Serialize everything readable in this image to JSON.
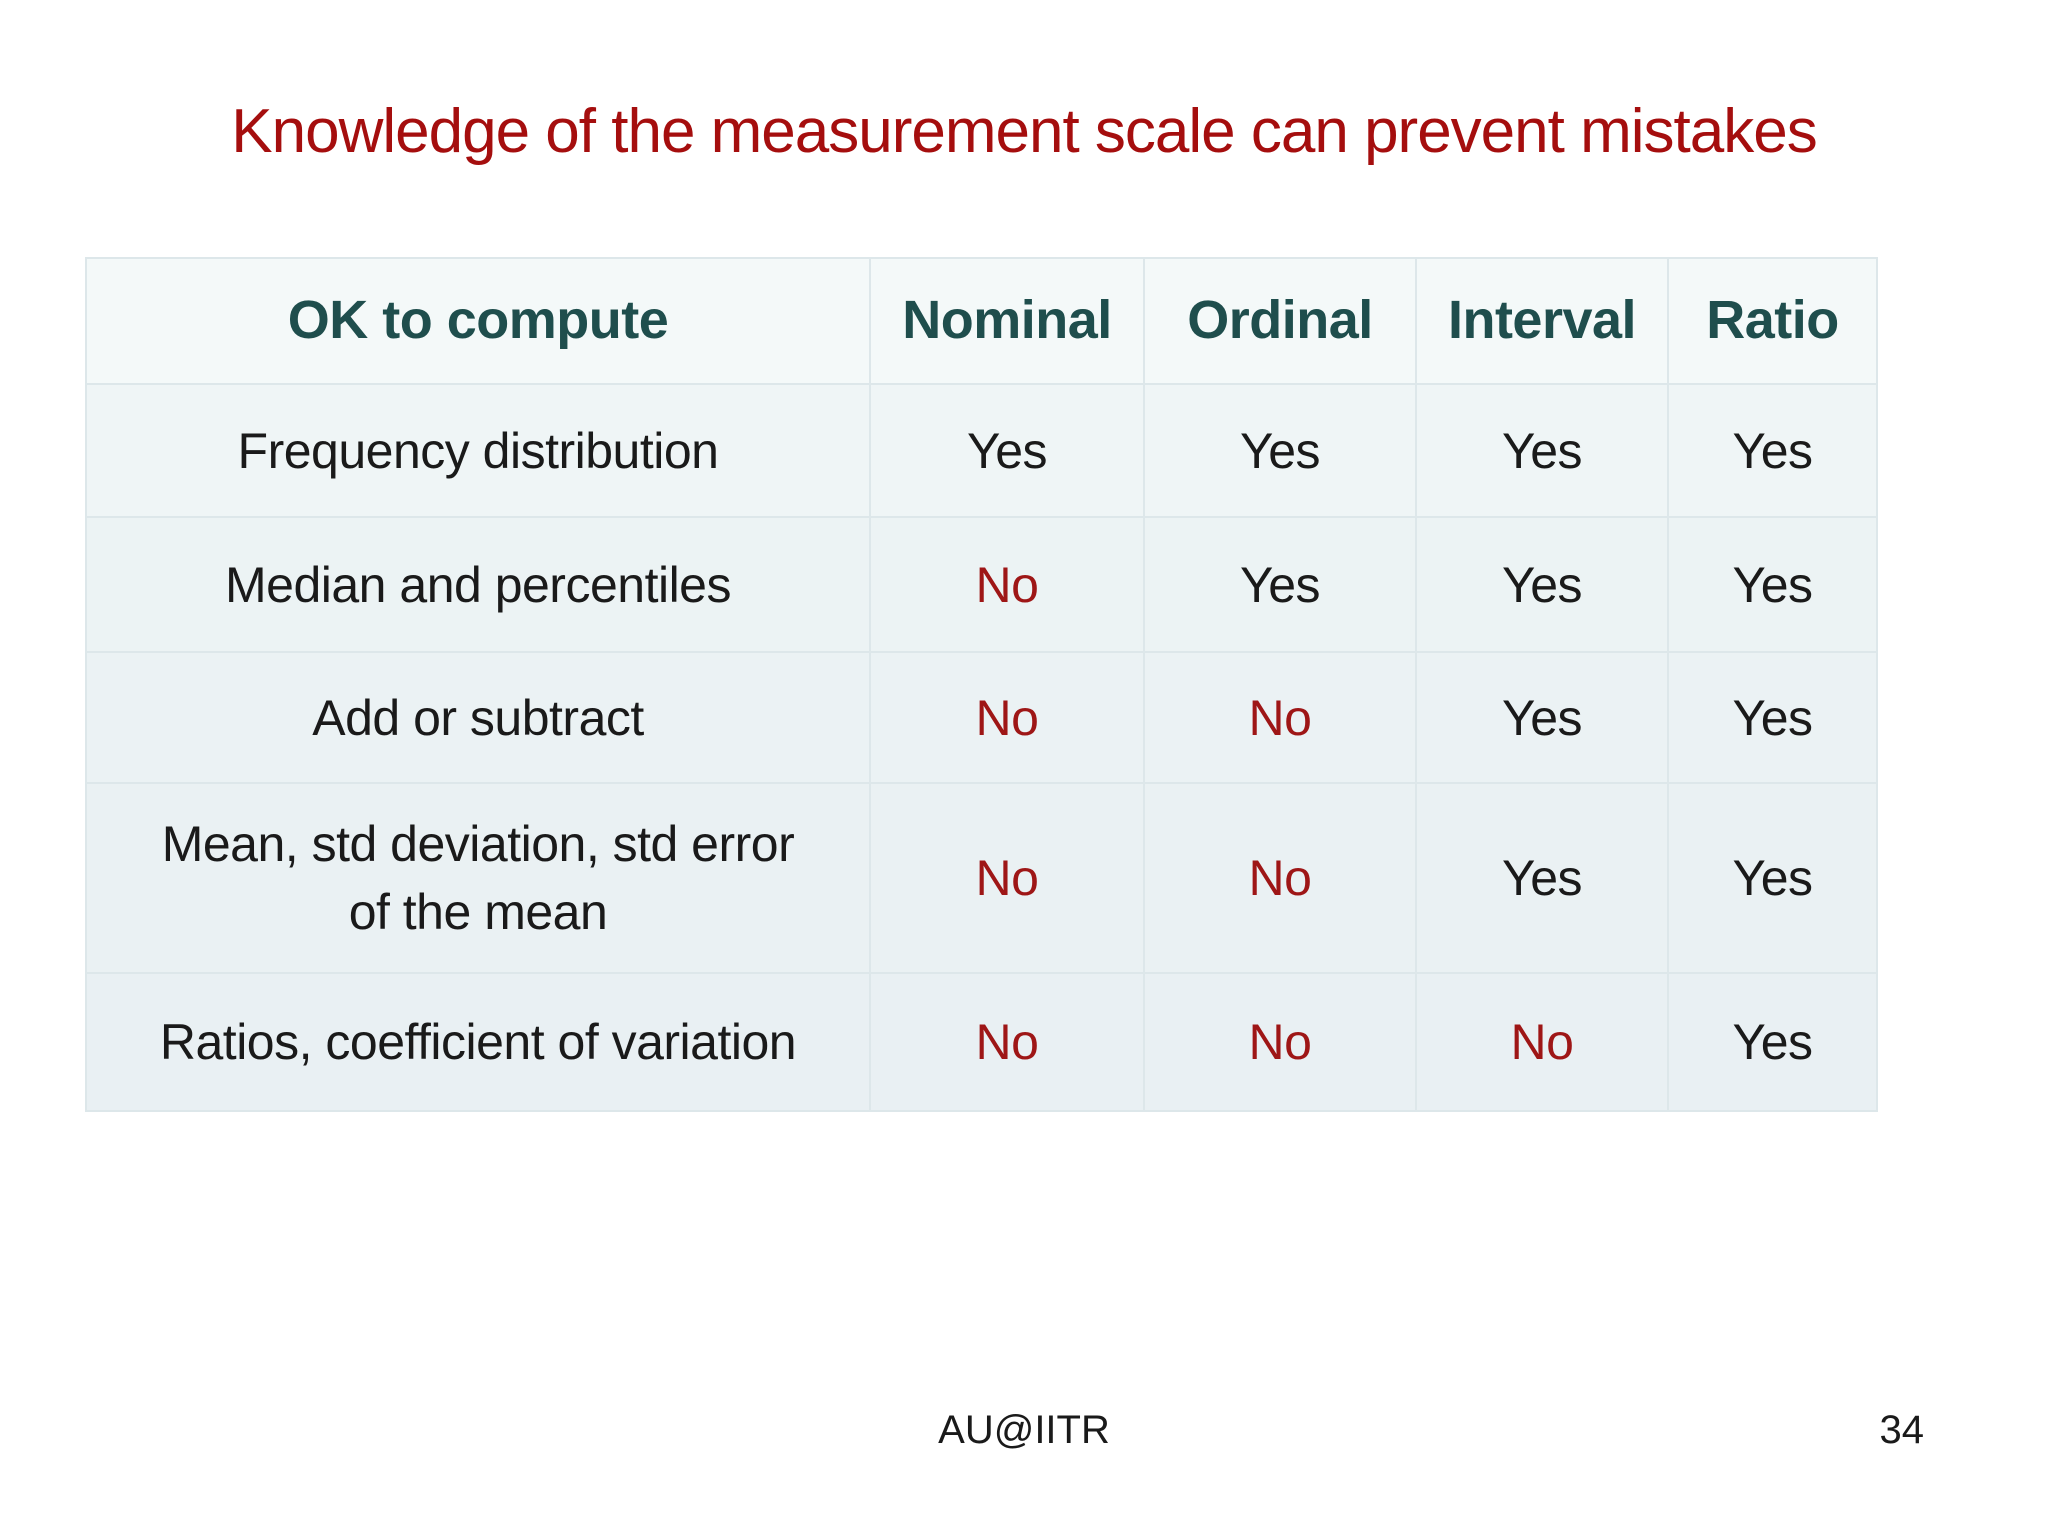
{
  "slide": {
    "title": "Knowledge of the measurement scale can prevent mistakes",
    "footer": "AU@IITR",
    "page_number": "34"
  },
  "palette": {
    "title_red": "#a50e0e",
    "header_teal": "#1f4e4d",
    "no_red": "#9e1616",
    "ink": "#1a1a1a",
    "table_border": "#dde7ea",
    "row_fills": [
      "#f4f9f9",
      "#eff5f6",
      "#ecf3f4",
      "#ebf2f4",
      "#eaf1f3",
      "#e9f0f3"
    ]
  },
  "table": {
    "headers": [
      "OK to compute",
      "Nominal",
      "Ordinal",
      "Interval",
      "Ratio"
    ],
    "rows": [
      {
        "label": "Frequency distribution",
        "values": [
          "Yes",
          "Yes",
          "Yes",
          "Yes"
        ]
      },
      {
        "label": "Median and percentiles",
        "values": [
          "No",
          "Yes",
          "Yes",
          "Yes"
        ]
      },
      {
        "label": "Add or subtract",
        "values": [
          "No",
          "No",
          "Yes",
          "Yes"
        ]
      },
      {
        "label": "Mean, std deviation, std error\nof the mean",
        "values": [
          "No",
          "No",
          "Yes",
          "Yes"
        ]
      },
      {
        "label": "Ratios, coefficient of variation",
        "values": [
          "No",
          "No",
          "No",
          "Yes"
        ]
      }
    ]
  }
}
